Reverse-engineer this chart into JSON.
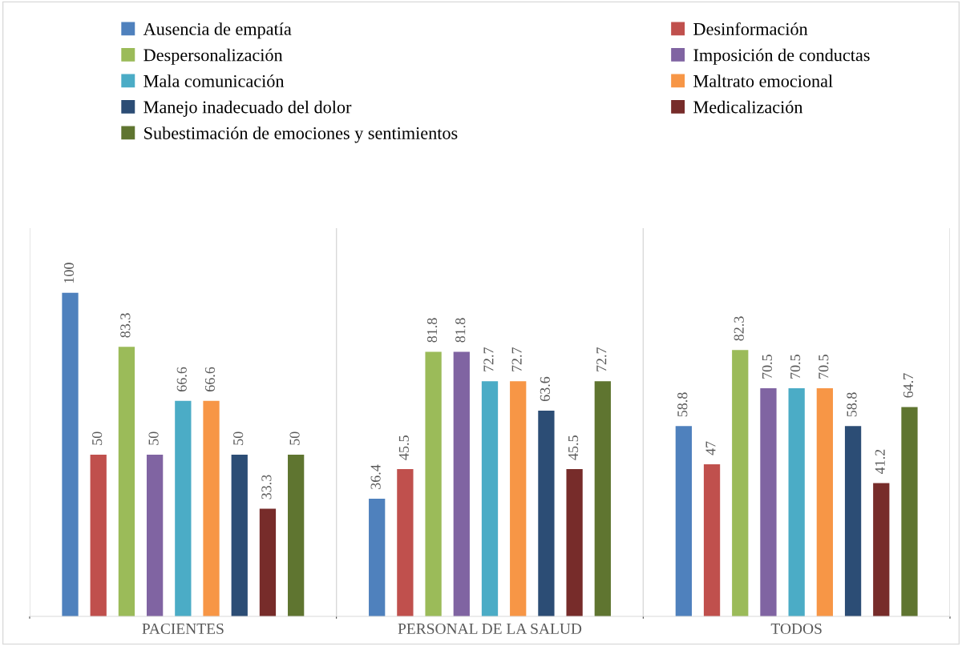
{
  "chart_data": {
    "type": "bar",
    "categories": [
      "PACIENTES",
      "PERSONAL DE LA SALUD",
      "TODOS"
    ],
    "series": [
      {
        "name": "Ausencia de empatía",
        "color": "#4f81bd",
        "values": [
          100,
          36.4,
          58.8
        ]
      },
      {
        "name": "Desinformación",
        "color": "#c0504d",
        "values": [
          50,
          45.5,
          47
        ]
      },
      {
        "name": "Despersonalización",
        "color": "#9bbb59",
        "values": [
          83.3,
          81.8,
          82.3
        ]
      },
      {
        "name": "Imposición de conductas",
        "color": "#8064a2",
        "values": [
          50,
          81.8,
          70.5
        ]
      },
      {
        "name": "Mala comunicación",
        "color": "#4bacc6",
        "values": [
          66.6,
          72.7,
          70.5
        ]
      },
      {
        "name": "Maltrato emocional",
        "color": "#f79646",
        "values": [
          66.6,
          72.7,
          70.5
        ]
      },
      {
        "name": "Manejo inadecuado del dolor",
        "color": "#2c4d75",
        "values": [
          50,
          63.6,
          58.8
        ]
      },
      {
        "name": "Medicalización",
        "color": "#772c2a",
        "values": [
          33.3,
          45.5,
          41.2
        ]
      },
      {
        "name": "Subestimación de emociones y sentimientos",
        "color": "#5f7530",
        "values": [
          50,
          72.7,
          64.7
        ]
      }
    ],
    "ylim": [
      0,
      120
    ],
    "tick_labels": "x",
    "data_labels": true,
    "grid": "x",
    "legend": "top"
  }
}
